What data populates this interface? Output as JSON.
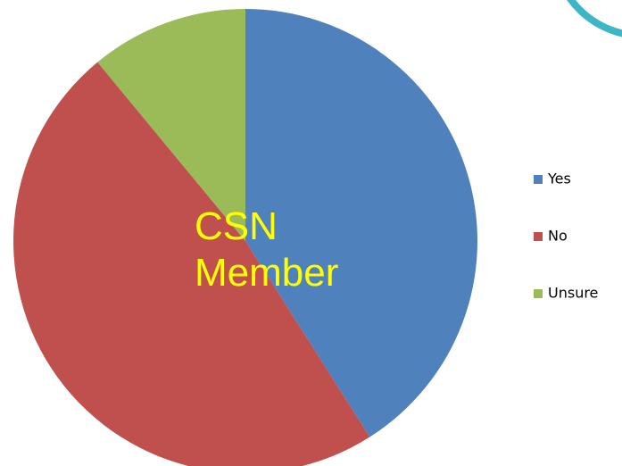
{
  "chart_data": {
    "type": "pie",
    "title": "CSN Member",
    "categories": [
      "Yes",
      "No",
      "Unsure"
    ],
    "values": [
      41,
      48,
      11
    ],
    "colors": [
      "#4f81bd",
      "#c0504d",
      "#9bbb59"
    ],
    "legend": "right"
  }
}
